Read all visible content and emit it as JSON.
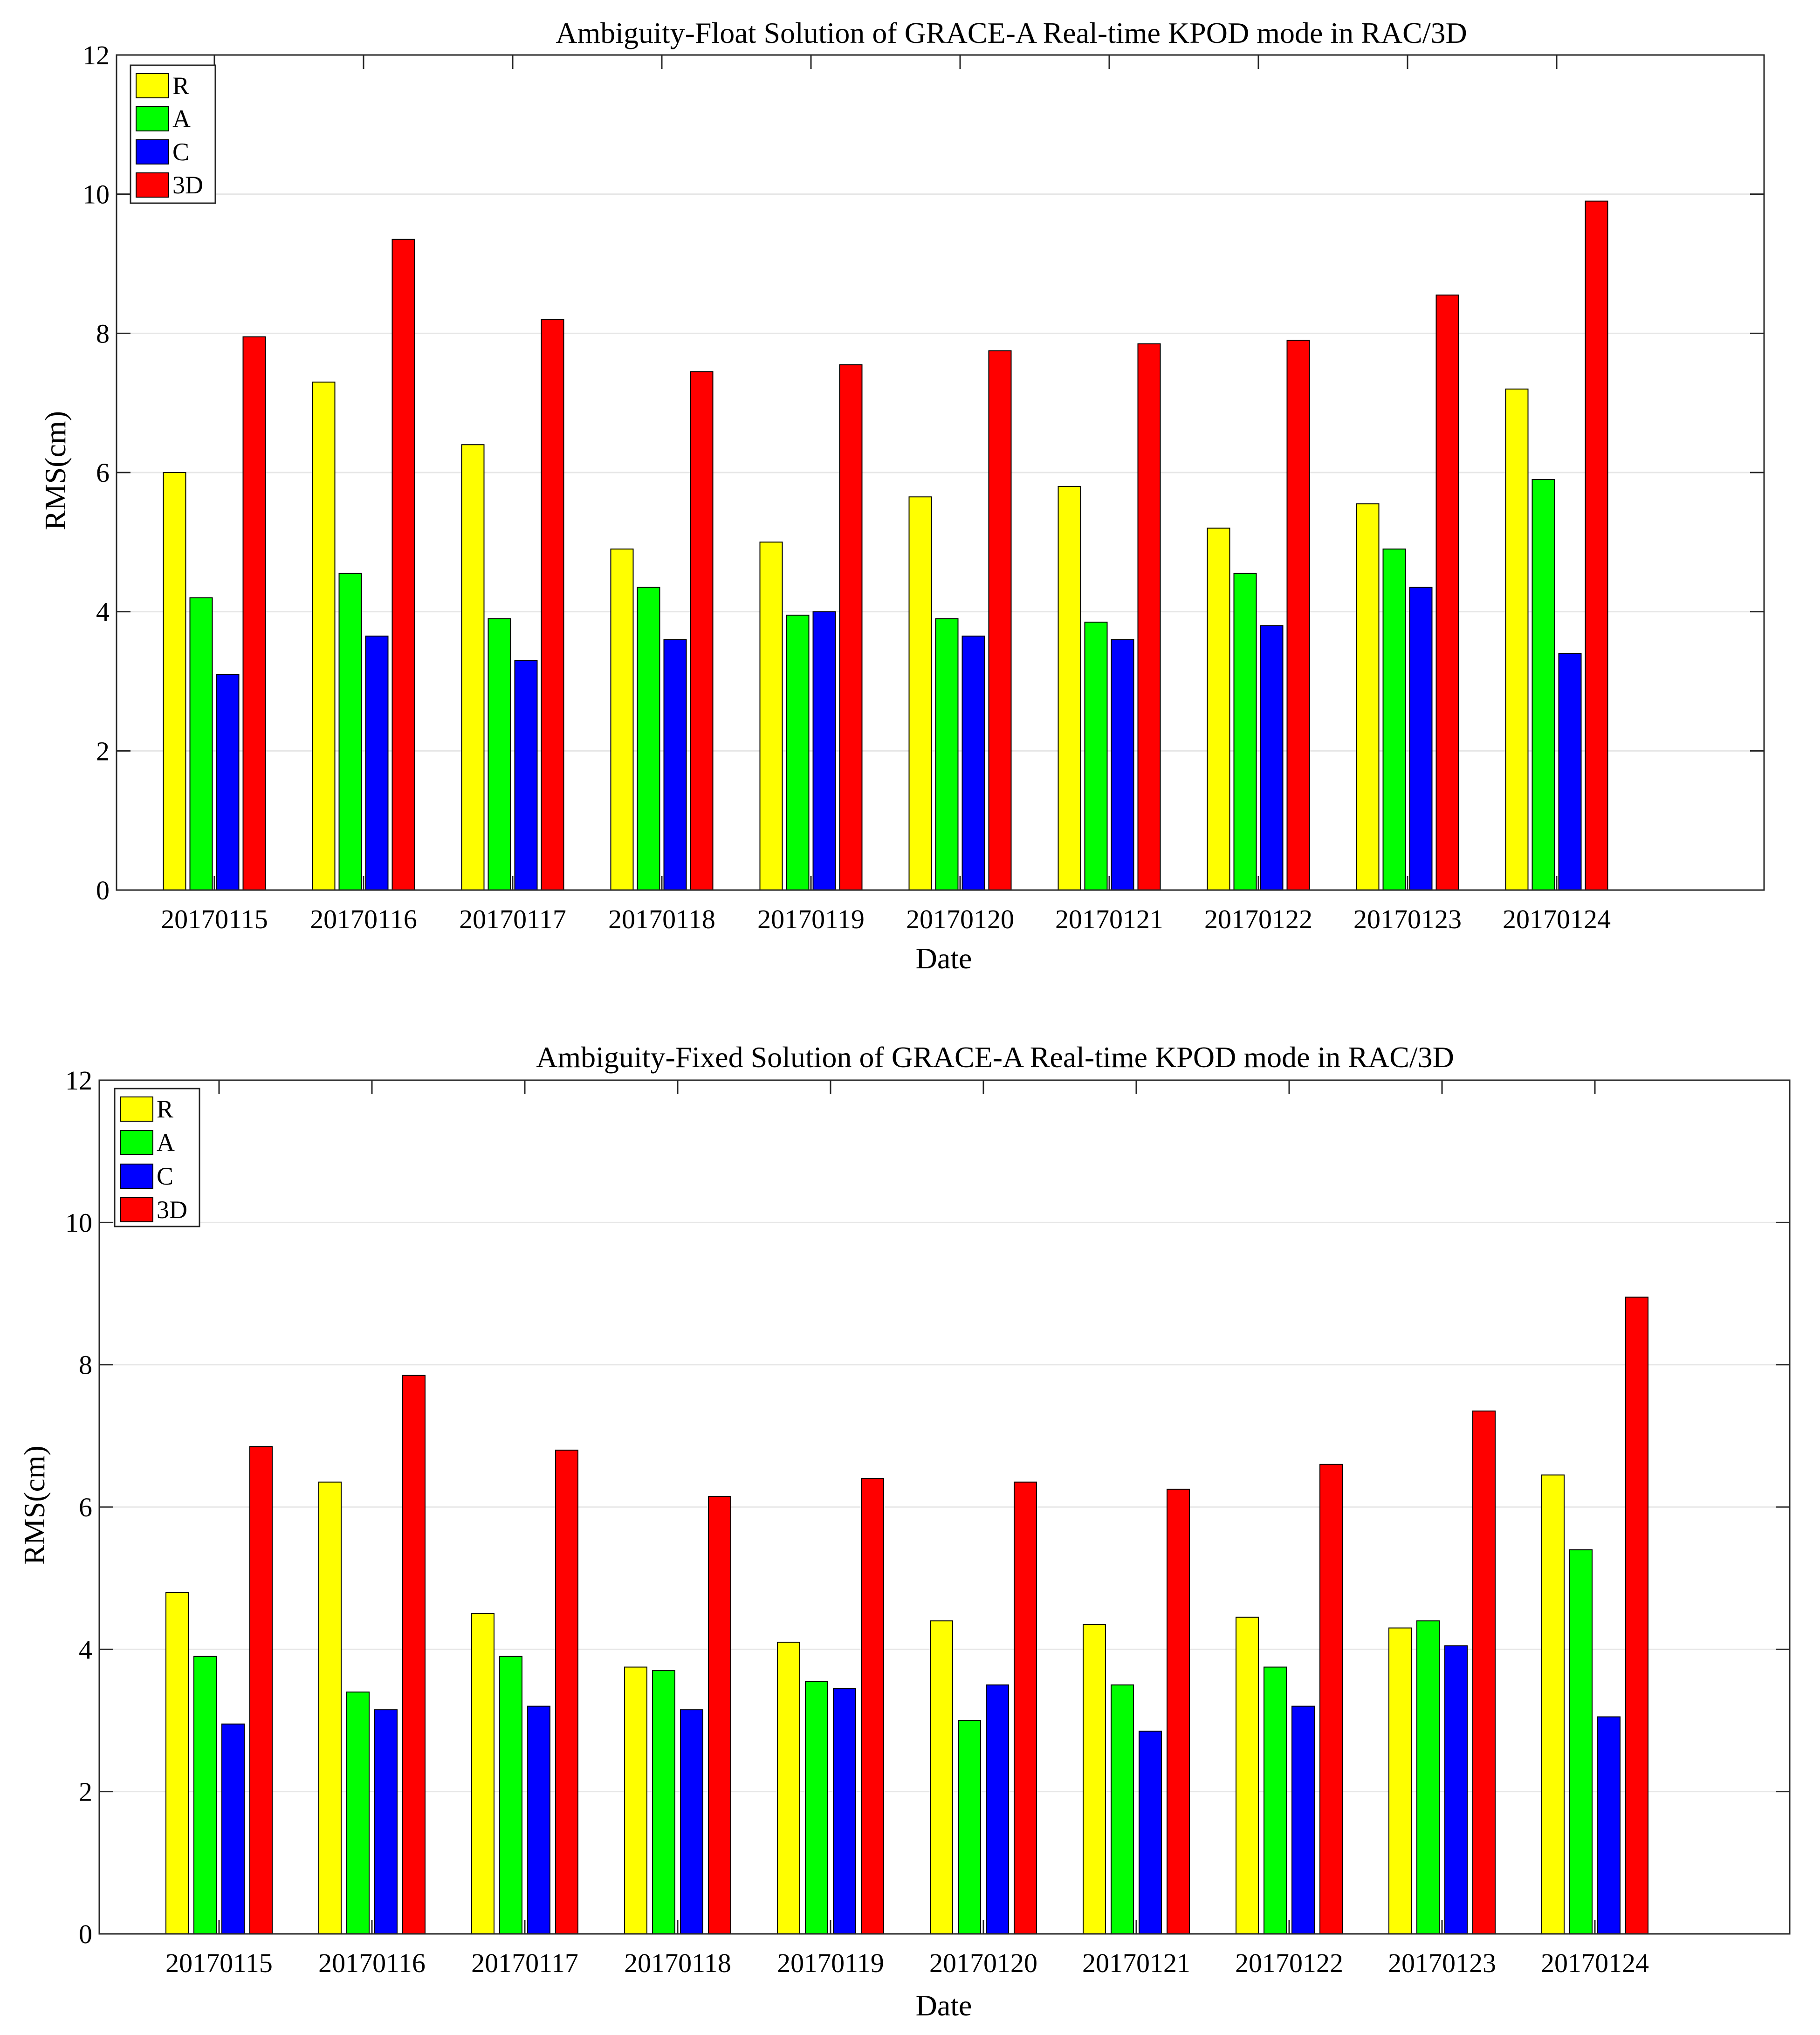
{
  "chart_data": [
    {
      "type": "bar",
      "title": "Ambiguity-Float Solution of GRACE-A Real-time KPOD mode in RAC/3D",
      "xlabel": "Date",
      "ylabel": "RMS(cm)",
      "ylim": [
        0,
        12
      ],
      "yticks": [
        0,
        2,
        4,
        6,
        8,
        10,
        12
      ],
      "grid": true,
      "legend_position": "top-left",
      "categories": [
        "20170115",
        "20170116",
        "20170117",
        "20170118",
        "20170119",
        "20170120",
        "20170121",
        "20170122",
        "20170123",
        "20170124"
      ],
      "series": [
        {
          "name": "R",
          "color": "#ffff00",
          "values": [
            6.0,
            7.3,
            6.4,
            4.9,
            5.0,
            5.65,
            5.8,
            5.2,
            5.55,
            7.2
          ]
        },
        {
          "name": "A",
          "color": "#00ff00",
          "values": [
            4.2,
            4.55,
            3.9,
            4.35,
            3.95,
            3.9,
            3.85,
            4.55,
            4.9,
            5.9
          ]
        },
        {
          "name": "C",
          "color": "#0000ff",
          "values": [
            3.1,
            3.65,
            3.3,
            3.6,
            4.0,
            3.65,
            3.6,
            3.8,
            4.35,
            3.4
          ]
        },
        {
          "name": "3D",
          "color": "#ff0000",
          "values": [
            7.95,
            9.35,
            8.2,
            7.45,
            7.55,
            7.75,
            7.85,
            7.9,
            8.55,
            9.9
          ]
        }
      ]
    },
    {
      "type": "bar",
      "title": "Ambiguity-Fixed Solution of GRACE-A Real-time KPOD mode in RAC/3D",
      "xlabel": "Date",
      "ylabel": "RMS(cm)",
      "ylim": [
        0,
        12
      ],
      "yticks": [
        0,
        2,
        4,
        6,
        8,
        10,
        12
      ],
      "grid": true,
      "legend_position": "top-left",
      "categories": [
        "20170115",
        "20170116",
        "20170117",
        "20170118",
        "20170119",
        "20170120",
        "20170121",
        "20170122",
        "20170123",
        "20170124"
      ],
      "series": [
        {
          "name": "R",
          "color": "#ffff00",
          "values": [
            4.8,
            6.35,
            4.5,
            3.75,
            4.1,
            4.4,
            4.35,
            4.45,
            4.3,
            6.45
          ]
        },
        {
          "name": "A",
          "color": "#00ff00",
          "values": [
            3.9,
            3.4,
            3.9,
            3.7,
            3.55,
            3.0,
            3.5,
            3.75,
            4.4,
            5.4
          ]
        },
        {
          "name": "C",
          "color": "#0000ff",
          "values": [
            2.95,
            3.15,
            3.2,
            3.15,
            3.45,
            3.5,
            2.85,
            3.2,
            4.05,
            3.05
          ]
        },
        {
          "name": "3D",
          "color": "#ff0000",
          "values": [
            6.85,
            7.85,
            6.8,
            6.15,
            6.4,
            6.35,
            6.25,
            6.6,
            7.35,
            8.95
          ]
        }
      ]
    }
  ]
}
